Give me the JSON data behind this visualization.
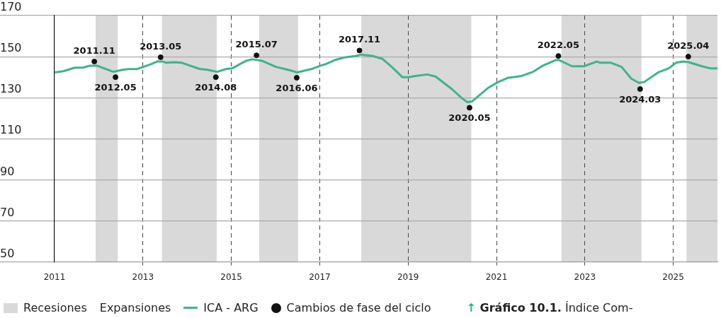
{
  "chart_data": {
    "type": "line",
    "xlim": [
      2011,
      2026
    ],
    "xticks": [
      2011,
      2013,
      2015,
      2017,
      2019,
      2021,
      2023,
      2025
    ],
    "ylim": [
      50,
      170
    ],
    "yticks": [
      50,
      70,
      90,
      110,
      130,
      150,
      170
    ],
    "grid": true,
    "legend": "bottom",
    "line_style": "solid",
    "marker": "none",
    "bands": [
      {
        "axis": "x",
        "from": 2011.93,
        "to": 2012.43,
        "label": "Recesiones",
        "color": "#d9d9d9"
      },
      {
        "axis": "x",
        "from": 2013.43,
        "to": 2014.67,
        "color": "#d9d9d9"
      },
      {
        "axis": "x",
        "from": 2015.63,
        "to": 2016.51,
        "color": "#d9d9d9"
      },
      {
        "axis": "x",
        "from": 2017.94,
        "to": 2020.43,
        "color": "#d9d9d9"
      },
      {
        "axis": "x",
        "from": 2022.47,
        "to": 2024.28,
        "color": "#d9d9d9"
      },
      {
        "axis": "x",
        "from": 2025.3,
        "to": 2026,
        "color": "#d9d9d9"
      }
    ],
    "series": [
      {
        "name": "ICA - ARG",
        "color": "#3eb489",
        "x": [
          2011.0,
          2011.2,
          2011.46,
          2011.64,
          2011.8,
          2011.96,
          2012.33,
          2012.54,
          2012.68,
          2012.86,
          2013.18,
          2013.32,
          2013.45,
          2013.53,
          2013.72,
          2013.88,
          2014.28,
          2014.46,
          2014.68,
          2014.89,
          2015.02,
          2015.34,
          2015.48,
          2015.69,
          2016.01,
          2016.33,
          2016.49,
          2016.62,
          2016.81,
          2017.02,
          2017.13,
          2017.34,
          2017.56,
          2017.81,
          2017.94,
          2018.2,
          2018.42,
          2018.63,
          2018.87,
          2019.01,
          2019.17,
          2019.43,
          2019.62,
          2019.99,
          2020.23,
          2020.34,
          2020.45,
          2020.82,
          2021.03,
          2021.25,
          2021.57,
          2021.83,
          2022.05,
          2022.34,
          2022.42,
          2022.71,
          2022.98,
          2023.27,
          2023.35,
          2023.59,
          2023.83,
          2024.05,
          2024.22,
          2024.34,
          2024.66,
          2024.9,
          2025.06,
          2025.22,
          2025.35,
          2025.65,
          2025.83,
          2026.0
        ],
        "values": [
          142.3,
          142.9,
          144.6,
          144.6,
          145.6,
          145.6,
          142.6,
          143.6,
          143.9,
          143.9,
          146.3,
          147.6,
          147.6,
          147,
          147.3,
          147,
          144,
          143.6,
          142.6,
          144,
          144.3,
          148,
          148.7,
          148,
          145,
          143.3,
          142.3,
          143,
          143.9,
          145.6,
          146.3,
          148.3,
          149.6,
          150.3,
          151,
          150.3,
          148.9,
          145,
          140,
          140,
          140.6,
          141.3,
          140.3,
          134.2,
          129.5,
          127.8,
          128.2,
          134.9,
          137.5,
          139.6,
          140.6,
          142.6,
          145.6,
          148.3,
          148.3,
          145.3,
          145.3,
          147.6,
          147,
          147,
          145,
          139.3,
          137.2,
          137.6,
          142.3,
          144.3,
          147,
          147.6,
          147.3,
          145.3,
          144.3,
          144.3
        ]
      },
      {
        "name": "Cambios de fase del ciclo",
        "color": "#111111",
        "type": "scatter",
        "marker": "circle",
        "x": [
          2011.9,
          2012.38,
          2013.4,
          2014.65,
          2015.57,
          2016.48,
          2017.9,
          2020.39,
          2022.4,
          2024.25,
          2025.34
        ],
        "values": [
          147.6,
          140,
          149.7,
          140,
          150.6,
          139.7,
          153,
          125.1,
          150.3,
          134.2,
          150
        ]
      }
    ],
    "annotations": [
      {
        "text": "2011.11",
        "x": 2011.9,
        "y": 147.6
      },
      {
        "text": "2012.05",
        "x": 2012.38,
        "y": 140
      },
      {
        "text": "2013.05",
        "x": 2013.4,
        "y": 149.7
      },
      {
        "text": "2014.08",
        "x": 2014.65,
        "y": 140
      },
      {
        "text": "2015.07",
        "x": 2015.57,
        "y": 150.6
      },
      {
        "text": "2016.06",
        "x": 2016.48,
        "y": 139.7
      },
      {
        "text": "2017.11",
        "x": 2017.9,
        "y": 153
      },
      {
        "text": "2020.05",
        "x": 2020.39,
        "y": 125.1
      },
      {
        "text": "2022.05",
        "x": 2022.4,
        "y": 150.3
      },
      {
        "text": "2024.03",
        "x": 2024.25,
        "y": 134.2
      },
      {
        "text": "2025.04",
        "x": 2025.34,
        "y": 150
      },
      "Expansiones",
      "↑ Gráfico 10.1. Índice Com-"
    ]
  }
}
